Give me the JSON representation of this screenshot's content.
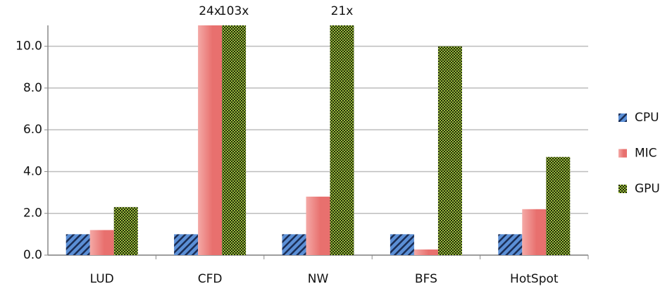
{
  "chart_data": {
    "type": "bar",
    "categories": [
      "LUD",
      "CFD",
      "NW",
      "BFS",
      "HotSpot"
    ],
    "series": [
      {
        "name": "CPU",
        "color": "#5b8fd6",
        "values": [
          1,
          1,
          1,
          1,
          1
        ]
      },
      {
        "name": "MIC",
        "color": "#e8706e",
        "values": [
          1.2,
          24,
          2.8,
          0.27,
          2.2
        ],
        "value_labels": [
          null,
          "24x",
          null,
          null,
          null
        ]
      },
      {
        "name": "GPU",
        "color": "#9bbb3c",
        "values": [
          2.3,
          103,
          21,
          10,
          4.7
        ],
        "value_labels": [
          null,
          "103x",
          "21x",
          null,
          null
        ]
      }
    ],
    "ylim": [
      0,
      11
    ],
    "yticks": [
      {
        "value": 0,
        "label": "0.0"
      },
      {
        "value": 2,
        "label": "2.0"
      },
      {
        "value": 4,
        "label": "4.0"
      },
      {
        "value": 6,
        "label": "6.0"
      },
      {
        "value": 8,
        "label": "8.0"
      },
      {
        "value": 10,
        "label": "10.0"
      }
    ],
    "grid": true,
    "legend": "right"
  }
}
